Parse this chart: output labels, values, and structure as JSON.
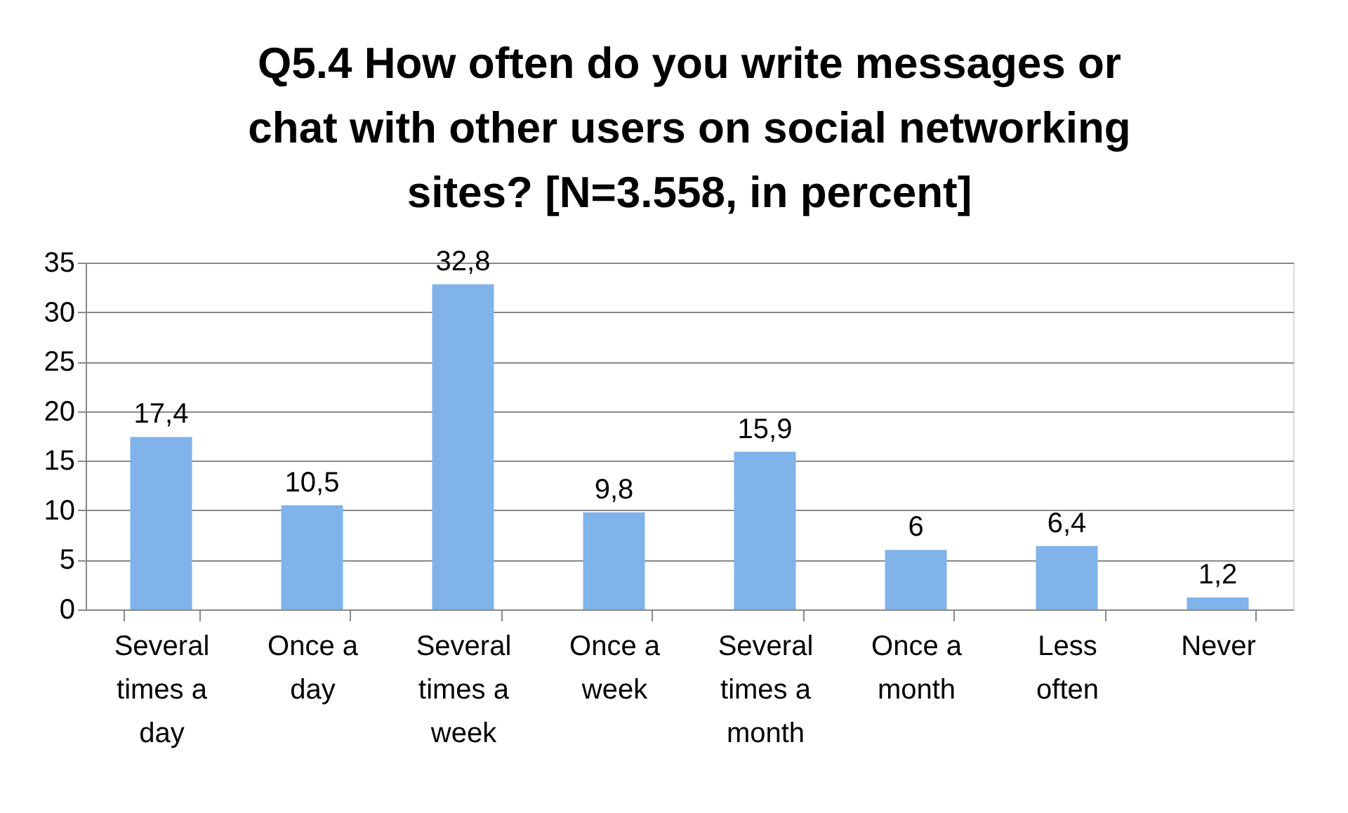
{
  "chart_data": {
    "type": "bar",
    "title": "Q5.4 How often do you write messages or chat with other users on social networking sites? [N=3.558, in percent]",
    "categories": [
      "Several times a day",
      "Once a day",
      "Several times a week",
      "Once a week",
      "Several times a month",
      "Once a month",
      "Less often",
      "Never"
    ],
    "values": [
      17.4,
      10.5,
      32.8,
      9.8,
      15.9,
      6,
      6.4,
      1.2
    ],
    "value_labels": [
      "17,4",
      "10,5",
      "32,8",
      "9,8",
      "15,9",
      "6",
      "6,4",
      "1,2"
    ],
    "color": "#7fb3ea",
    "ylim": [
      0,
      35
    ],
    "yticks": [
      0,
      5,
      10,
      15,
      20,
      25,
      30,
      35
    ],
    "grid": "y"
  }
}
